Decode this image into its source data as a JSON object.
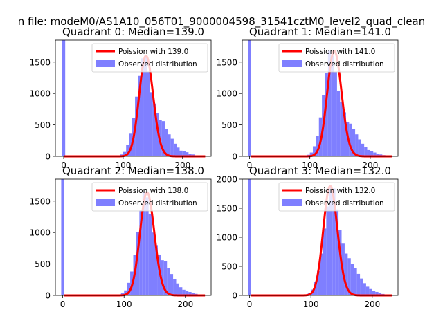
{
  "figure": {
    "suptitle": "n file: modeM0/AS1A10_056T01_9000004598_31541cztM0_level2_quad_clean"
  },
  "colors": {
    "poisson_line": "#ff0000",
    "histogram_fill": "#7f7fff",
    "axes": "#000000"
  },
  "chart_data": [
    {
      "type": "bar",
      "title": "Quadrant 0: Median=139.0",
      "median": 139.0,
      "xlim": [
        -14,
        248
      ],
      "ylim": [
        0,
        1850
      ],
      "xticks": [
        0,
        100,
        200
      ],
      "yticks": [
        0,
        500,
        1000,
        1500
      ],
      "spike": {
        "x": 0,
        "value": 1850
      },
      "bin_edges": [
        5,
        15,
        25,
        35,
        45,
        55,
        65,
        75,
        85,
        95,
        100,
        105,
        110,
        115,
        120,
        125,
        130,
        135,
        140,
        145,
        150,
        155,
        160,
        165,
        170,
        175,
        180,
        185,
        190,
        195,
        200,
        205,
        210,
        215,
        220,
        225,
        230,
        235
      ],
      "values": [
        0,
        0,
        0,
        0,
        0,
        0,
        0,
        5,
        10,
        30,
        70,
        180,
        360,
        610,
        950,
        1280,
        1560,
        1600,
        1350,
        1020,
        840,
        690,
        580,
        560,
        440,
        350,
        280,
        200,
        140,
        90,
        80,
        65,
        40,
        30,
        15,
        10,
        5
      ],
      "legend": {
        "position": "top-right",
        "entries": [
          "Poission with 139.0",
          "Observed distribution"
        ]
      }
    },
    {
      "type": "bar",
      "title": "Quadrant 1: Median=141.0",
      "median": 141.0,
      "xlim": [
        -12,
        246
      ],
      "ylim": [
        0,
        1850
      ],
      "xticks": [
        0,
        100,
        200
      ],
      "yticks": [
        0,
        500,
        1000,
        1500
      ],
      "spike": {
        "x": 0,
        "value": 1850
      },
      "bin_edges": [
        5,
        15,
        25,
        35,
        45,
        55,
        65,
        75,
        85,
        95,
        100,
        105,
        110,
        115,
        120,
        125,
        130,
        135,
        140,
        145,
        150,
        155,
        160,
        165,
        170,
        175,
        180,
        185,
        190,
        195,
        200,
        205,
        210,
        215,
        220,
        225,
        230,
        235
      ],
      "values": [
        0,
        0,
        0,
        0,
        0,
        0,
        0,
        4,
        8,
        25,
        60,
        160,
        330,
        620,
        980,
        1330,
        1680,
        1600,
        1340,
        1040,
        860,
        700,
        540,
        520,
        430,
        350,
        270,
        200,
        150,
        100,
        80,
        60,
        40,
        30,
        20,
        10,
        5
      ],
      "legend": {
        "position": "top-right",
        "entries": [
          "Poission with 141.0",
          "Observed distribution"
        ]
      }
    },
    {
      "type": "bar",
      "title": "Quadrant 2: Median=138.0",
      "median": 138.0,
      "xlim": [
        -12,
        242
      ],
      "ylim": [
        0,
        1850
      ],
      "xticks": [
        0,
        100,
        200
      ],
      "yticks": [
        0,
        500,
        1000,
        1500
      ],
      "spike": {
        "x": 0,
        "value": 1850
      },
      "bin_edges": [
        5,
        15,
        25,
        35,
        45,
        55,
        65,
        75,
        85,
        95,
        100,
        105,
        110,
        115,
        120,
        125,
        130,
        135,
        140,
        145,
        150,
        155,
        160,
        165,
        170,
        175,
        180,
        185,
        190,
        195,
        200,
        205,
        210,
        215,
        220,
        225,
        230,
        235
      ],
      "values": [
        0,
        0,
        0,
        0,
        0,
        0,
        0,
        5,
        10,
        35,
        80,
        200,
        380,
        640,
        1010,
        1360,
        1640,
        1560,
        1300,
        1000,
        800,
        650,
        560,
        550,
        430,
        340,
        260,
        190,
        130,
        90,
        70,
        55,
        40,
        25,
        15,
        10,
        5
      ],
      "legend": {
        "position": "top-right",
        "entries": [
          "Poission with 138.0",
          "Observed distribution"
        ]
      }
    },
    {
      "type": "bar",
      "title": "Quadrant 3: Median=132.0",
      "median": 132.0,
      "xlim": [
        -12,
        242
      ],
      "ylim": [
        0,
        2000
      ],
      "xticks": [
        0,
        100,
        200
      ],
      "yticks": [
        0,
        500,
        1000,
        1500,
        2000
      ],
      "spike": {
        "x": 0,
        "value": 2000
      },
      "bin_edges": [
        5,
        15,
        25,
        35,
        45,
        55,
        65,
        75,
        85,
        95,
        100,
        105,
        110,
        115,
        120,
        125,
        130,
        135,
        140,
        145,
        150,
        155,
        160,
        165,
        170,
        175,
        180,
        185,
        190,
        195,
        200,
        205,
        210,
        215,
        220,
        225,
        230
      ],
      "values": [
        0,
        0,
        0,
        0,
        0,
        0,
        0,
        5,
        15,
        45,
        100,
        230,
        420,
        720,
        1150,
        1530,
        1880,
        1840,
        1480,
        1130,
        890,
        720,
        640,
        540,
        470,
        370,
        290,
        210,
        150,
        110,
        80,
        60,
        40,
        25,
        15,
        5
      ],
      "legend": {
        "position": "top-right",
        "entries": [
          "Poission with 132.0",
          "Observed distribution"
        ]
      }
    }
  ]
}
